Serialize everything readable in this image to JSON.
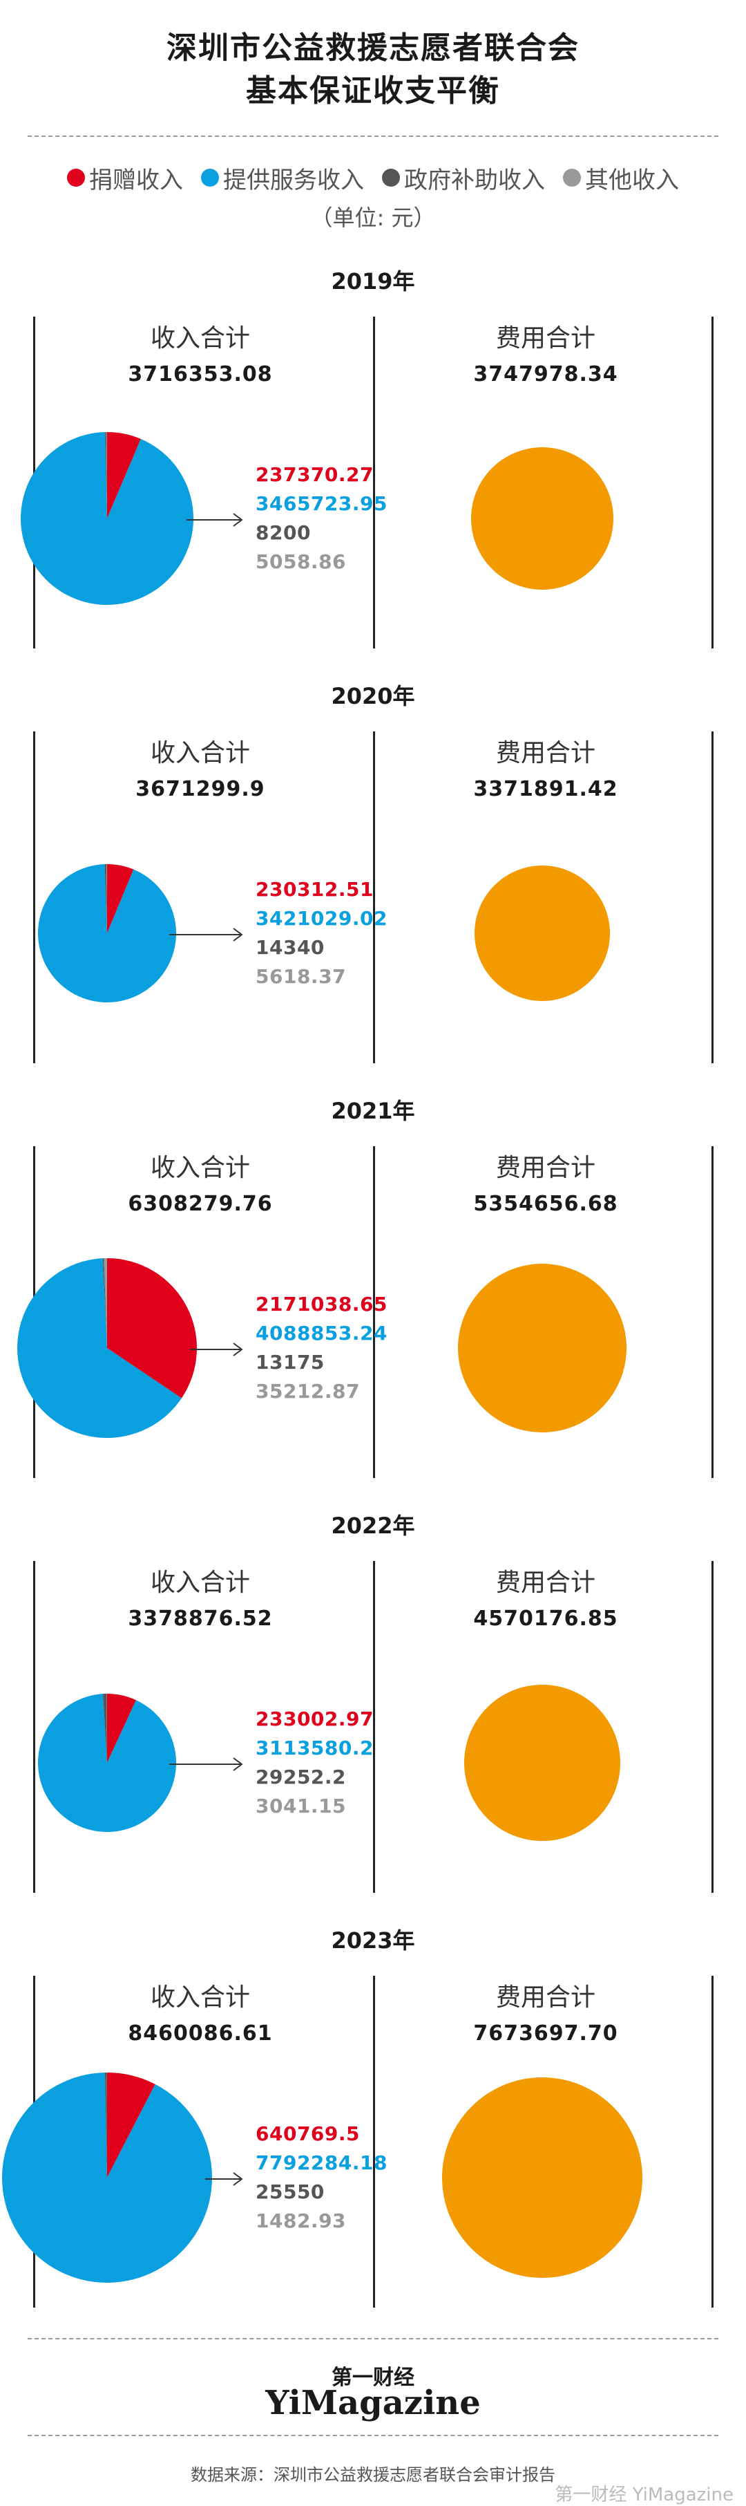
{
  "title_line1": "深圳市公益救援志愿者联合会",
  "title_line2": "基本保证收支平衡",
  "legend": [
    {
      "label": "捐赠收入",
      "color": "#e0001b"
    },
    {
      "label": "提供服务收入",
      "color": "#0aa0e0"
    },
    {
      "label": "政府补助收入",
      "color": "#555555"
    },
    {
      "label": "其他收入",
      "color": "#999999"
    }
  ],
  "unit": "（单位: 元）",
  "income_header": "收入合计",
  "expense_header": "费用合计",
  "expense_color": "#f29a00",
  "chart_data": [
    {
      "type": "pie",
      "year": "2019年",
      "income_total": "3716353.08",
      "expense_total": "3747978.34",
      "values": [
        237370.27,
        3465723.95,
        8200,
        5058.86
      ],
      "labels": [
        "237370.27",
        "3465723.95",
        "8200",
        "5058.86"
      ]
    },
    {
      "type": "pie",
      "year": "2020年",
      "income_total": "3671299.9",
      "expense_total": "3371891.42",
      "values": [
        230312.51,
        3421029.02,
        14340,
        5618.37
      ],
      "labels": [
        "230312.51",
        "3421029.02",
        "14340",
        "5618.37"
      ]
    },
    {
      "type": "pie",
      "year": "2021年",
      "income_total": "6308279.76",
      "expense_total": "5354656.68",
      "values": [
        2171038.65,
        4088853.24,
        13175,
        35212.87
      ],
      "labels": [
        "2171038.65",
        "4088853.24",
        "13175",
        "35212.87"
      ]
    },
    {
      "type": "pie",
      "year": "2022年",
      "income_total": "3378876.52",
      "expense_total": "4570176.85",
      "values": [
        233002.97,
        3113580.2,
        29252.2,
        3041.15
      ],
      "labels": [
        "233002.97",
        "3113580.2",
        "29252.2",
        "3041.15"
      ]
    },
    {
      "type": "pie",
      "year": "2023年",
      "income_total": "8460086.61",
      "expense_total": "7673697.70",
      "values": [
        640769.5,
        7792284.18,
        25550,
        1482.93
      ],
      "labels": [
        "640769.5",
        "7792284.18",
        "25550",
        "1482.93"
      ]
    }
  ],
  "footer_cn": "第一财经",
  "footer_en": "YiMagazine",
  "source": "数据来源：深圳市公益救援志愿者联合会审计报告",
  "watermark": "第一财经 YiMagazine"
}
